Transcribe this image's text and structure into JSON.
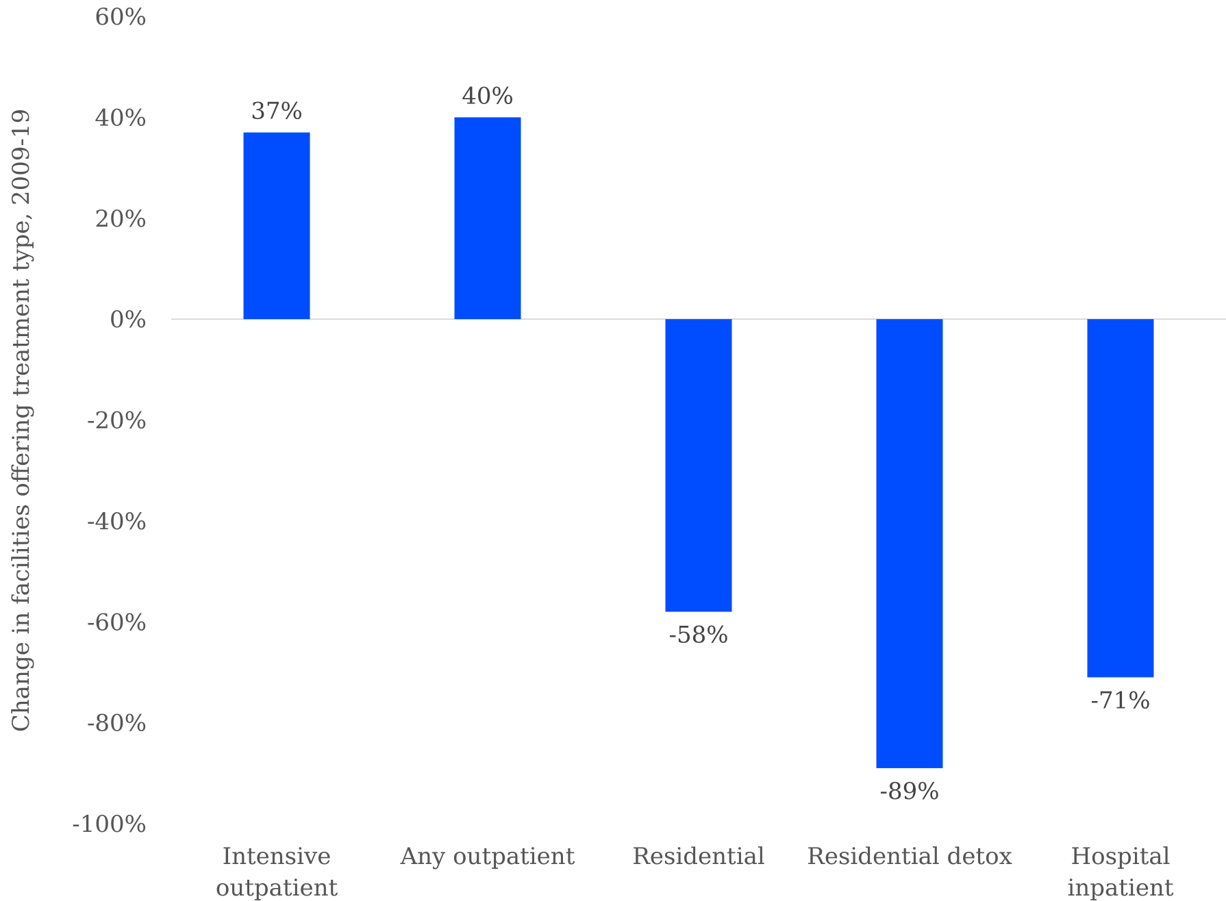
{
  "chart_data": {
    "type": "bar",
    "categories": [
      [
        "Intensive",
        "outpatient"
      ],
      [
        "Any outpatient"
      ],
      [
        "Residential"
      ],
      [
        "Residential detox"
      ],
      [
        "Hospital",
        "inpatient"
      ]
    ],
    "values": [
      37,
      40,
      -58,
      -89,
      -71
    ],
    "data_labels": [
      "37%",
      "40%",
      "-58%",
      "-89%",
      "-71%"
    ],
    "ylabel": "Change in facilities offering treatment type, 2009-19",
    "ylim": [
      -100,
      60
    ],
    "yticks": [
      60,
      40,
      20,
      0,
      -20,
      -40,
      -60,
      -80,
      -100
    ],
    "ytick_labels": [
      "60%",
      "40%",
      "20%",
      "0%",
      "-20%",
      "-40%",
      "-60%",
      "-80%",
      "-100%"
    ],
    "bar_color": "#004CFF",
    "zero_line_color": "#d9d9d9",
    "grid": false,
    "legend": "none"
  }
}
